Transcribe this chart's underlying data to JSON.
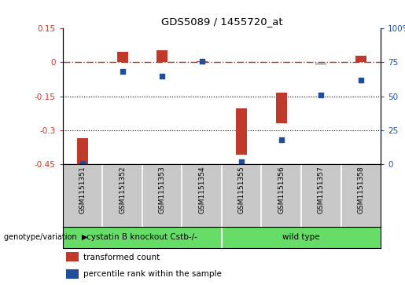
{
  "title": "GDS5089 / 1455720_at",
  "samples": [
    "GSM1151351",
    "GSM1151352",
    "GSM1151353",
    "GSM1151354",
    "GSM1151355",
    "GSM1151356",
    "GSM1151357",
    "GSM1151358"
  ],
  "bar_values": [
    -0.335,
    0.045,
    0.055,
    0.005,
    -0.205,
    -0.135,
    -0.005,
    0.03
  ],
  "dot_values_pct": [
    0.5,
    68,
    65,
    76,
    1.5,
    18,
    51,
    62
  ],
  "group1_label": "cystatin B knockout Cstb-/-",
  "group2_label": "wild type",
  "n_group1": 4,
  "n_group2": 4,
  "bar_color": "#C0392B",
  "dot_color": "#1F4E9B",
  "group_color": "#66DD66",
  "xtick_bg_color": "#C8C8C8",
  "ylim_left": [
    -0.45,
    0.15
  ],
  "ylim_right": [
    0,
    100
  ],
  "yticks_left": [
    -0.45,
    -0.3,
    -0.15,
    0.0,
    0.15
  ],
  "ytick_labels_left": [
    "-0.45",
    "-0.3",
    "-0.15",
    "0",
    "0.15"
  ],
  "yticks_right": [
    0,
    25,
    50,
    75,
    100
  ],
  "ytick_labels_right": [
    "0",
    "25",
    "50",
    "75",
    "100%"
  ],
  "hline_y": 0.0,
  "dotted_lines": [
    -0.15,
    -0.3
  ],
  "legend_bar_label": "transformed count",
  "legend_dot_label": "percentile rank within the sample",
  "genotype_label": "genotype/variation"
}
